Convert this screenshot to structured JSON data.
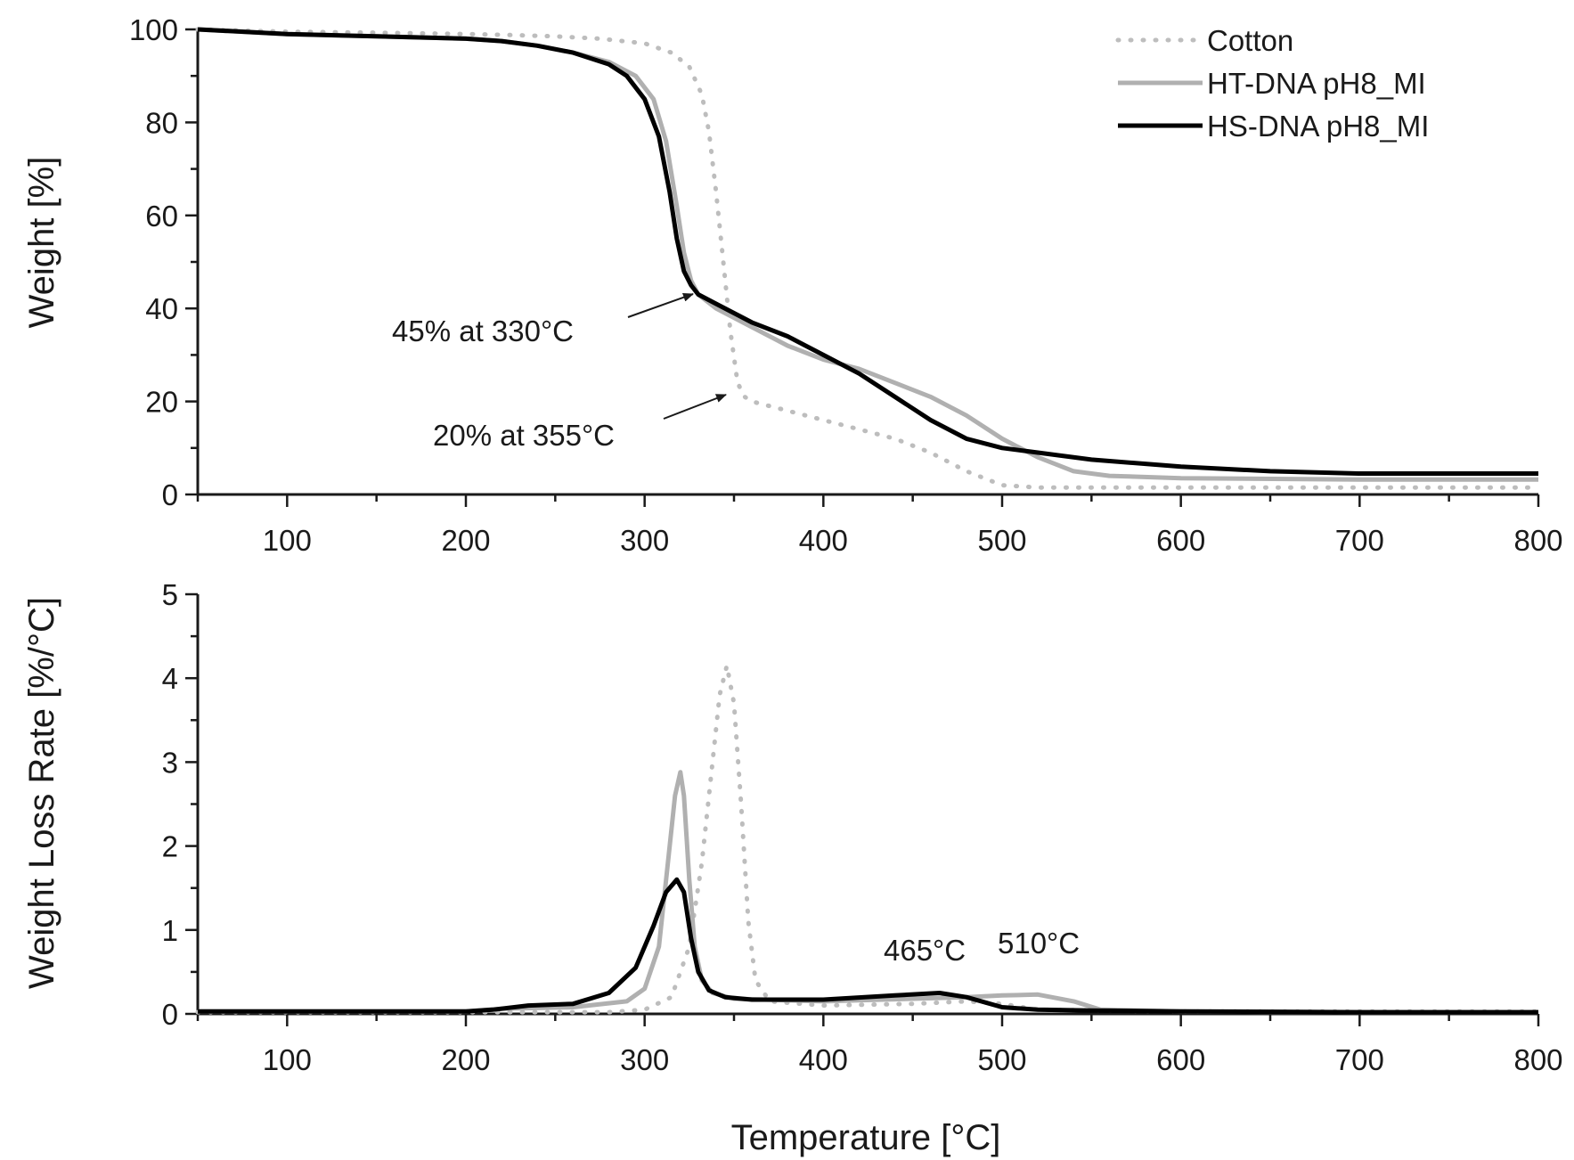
{
  "chart_data": [
    {
      "type": "line",
      "xlabel": "",
      "ylabel": "Weight [%]",
      "xlim": [
        50,
        800
      ],
      "ylim": [
        0,
        100
      ],
      "xticks": [
        100,
        200,
        300,
        400,
        500,
        600,
        700,
        800
      ],
      "yticks": [
        0,
        20,
        40,
        60,
        80,
        100
      ],
      "grid": false,
      "legend": {
        "position": "top-right"
      },
      "series": [
        {
          "name": "Cotton",
          "color": "#bdbdbd",
          "style": "dotted",
          "x": [
            50,
            100,
            150,
            200,
            225,
            250,
            275,
            300,
            315,
            325,
            332,
            336,
            340,
            344,
            348,
            352,
            356,
            360,
            380,
            400,
            420,
            440,
            460,
            480,
            500,
            520,
            600,
            700,
            800
          ],
          "y": [
            100,
            99.5,
            99.3,
            99,
            98.8,
            98.5,
            98,
            97,
            95,
            92,
            86,
            78,
            65,
            50,
            35,
            24,
            21,
            20,
            18,
            16,
            14,
            12,
            9,
            5,
            2,
            1.5,
            1.5,
            1.5,
            1.5
          ]
        },
        {
          "name": "HT-DNA pH8_MI",
          "color": "#b0b0b0",
          "style": "solid",
          "x": [
            50,
            100,
            150,
            200,
            220,
            240,
            260,
            280,
            295,
            305,
            312,
            318,
            322,
            326,
            330,
            340,
            360,
            380,
            400,
            420,
            440,
            460,
            480,
            500,
            520,
            540,
            560,
            600,
            700,
            800
          ],
          "y": [
            100,
            99,
            98.5,
            98,
            97.5,
            96.5,
            95,
            93,
            90,
            85,
            76,
            62,
            52,
            46,
            43,
            40,
            36,
            32,
            29,
            27,
            24,
            21,
            17,
            12,
            8,
            5,
            4,
            3.5,
            3.2,
            3.2
          ]
        },
        {
          "name": "HS-DNA pH8_MI",
          "color": "#000000",
          "style": "solid",
          "x": [
            50,
            100,
            150,
            200,
            220,
            240,
            260,
            280,
            290,
            300,
            308,
            314,
            318,
            322,
            326,
            330,
            340,
            360,
            380,
            400,
            420,
            440,
            460,
            480,
            500,
            520,
            550,
            600,
            650,
            700,
            800
          ],
          "y": [
            100,
            99,
            98.5,
            98,
            97.5,
            96.5,
            95,
            92.5,
            90,
            85,
            77,
            65,
            55,
            48,
            45,
            43,
            41,
            37,
            34,
            30,
            26,
            21,
            16,
            12,
            10,
            9,
            7.5,
            6,
            5,
            4.5,
            4.5
          ]
        }
      ],
      "annotations": [
        {
          "text": "45% at 330°C",
          "x": 330,
          "y": 45
        },
        {
          "text": "20% at 355°C",
          "x": 355,
          "y": 20
        }
      ]
    },
    {
      "type": "line",
      "xlabel": "Temperature [°C]",
      "ylabel": "Weight Loss Rate [%/°C]",
      "xlim": [
        50,
        800
      ],
      "ylim": [
        0,
        5
      ],
      "xticks": [
        100,
        200,
        300,
        400,
        500,
        600,
        700,
        800
      ],
      "yticks": [
        0,
        1,
        2,
        3,
        4,
        5
      ],
      "grid": false,
      "series": [
        {
          "name": "Cotton",
          "color": "#bdbdbd",
          "style": "dotted",
          "x": [
            50,
            200,
            280,
            300,
            315,
            325,
            332,
            338,
            342,
            346,
            350,
            354,
            358,
            362,
            370,
            400,
            450,
            480,
            500,
            520,
            600,
            800
          ],
          "y": [
            0.02,
            0.02,
            0.02,
            0.05,
            0.2,
            0.8,
            1.8,
            3.0,
            3.8,
            4.15,
            3.7,
            2.5,
            1.1,
            0.4,
            0.15,
            0.1,
            0.12,
            0.15,
            0.12,
            0.05,
            0.03,
            0.03
          ]
        },
        {
          "name": "HT-DNA pH8_MI",
          "color": "#b0b0b0",
          "style": "solid",
          "x": [
            50,
            200,
            220,
            260,
            290,
            300,
            308,
            313,
            317,
            320,
            322,
            325,
            328,
            332,
            338,
            350,
            400,
            450,
            480,
            500,
            520,
            540,
            555,
            600,
            700,
            800
          ],
          "y": [
            0.03,
            0.03,
            0.06,
            0.08,
            0.15,
            0.3,
            0.8,
            1.8,
            2.6,
            2.88,
            2.6,
            1.6,
            0.8,
            0.4,
            0.25,
            0.18,
            0.15,
            0.18,
            0.2,
            0.22,
            0.23,
            0.15,
            0.05,
            0.03,
            0.02,
            0.02
          ]
        },
        {
          "name": "HS-DNA pH8_MI",
          "color": "#000000",
          "style": "solid",
          "x": [
            50,
            200,
            215,
            235,
            260,
            280,
            295,
            305,
            312,
            318,
            322,
            326,
            330,
            336,
            345,
            360,
            400,
            440,
            465,
            480,
            500,
            520,
            550,
            600,
            700,
            800
          ],
          "y": [
            0.03,
            0.03,
            0.05,
            0.1,
            0.12,
            0.25,
            0.55,
            1.05,
            1.45,
            1.6,
            1.45,
            0.9,
            0.5,
            0.28,
            0.2,
            0.17,
            0.17,
            0.22,
            0.25,
            0.2,
            0.08,
            0.05,
            0.04,
            0.03,
            0.02,
            0.02
          ]
        }
      ],
      "annotations": [
        {
          "text": "465°C",
          "x": 465,
          "y": 0.25
        },
        {
          "text": "510°C",
          "x": 510,
          "y": 0.23
        }
      ]
    }
  ]
}
